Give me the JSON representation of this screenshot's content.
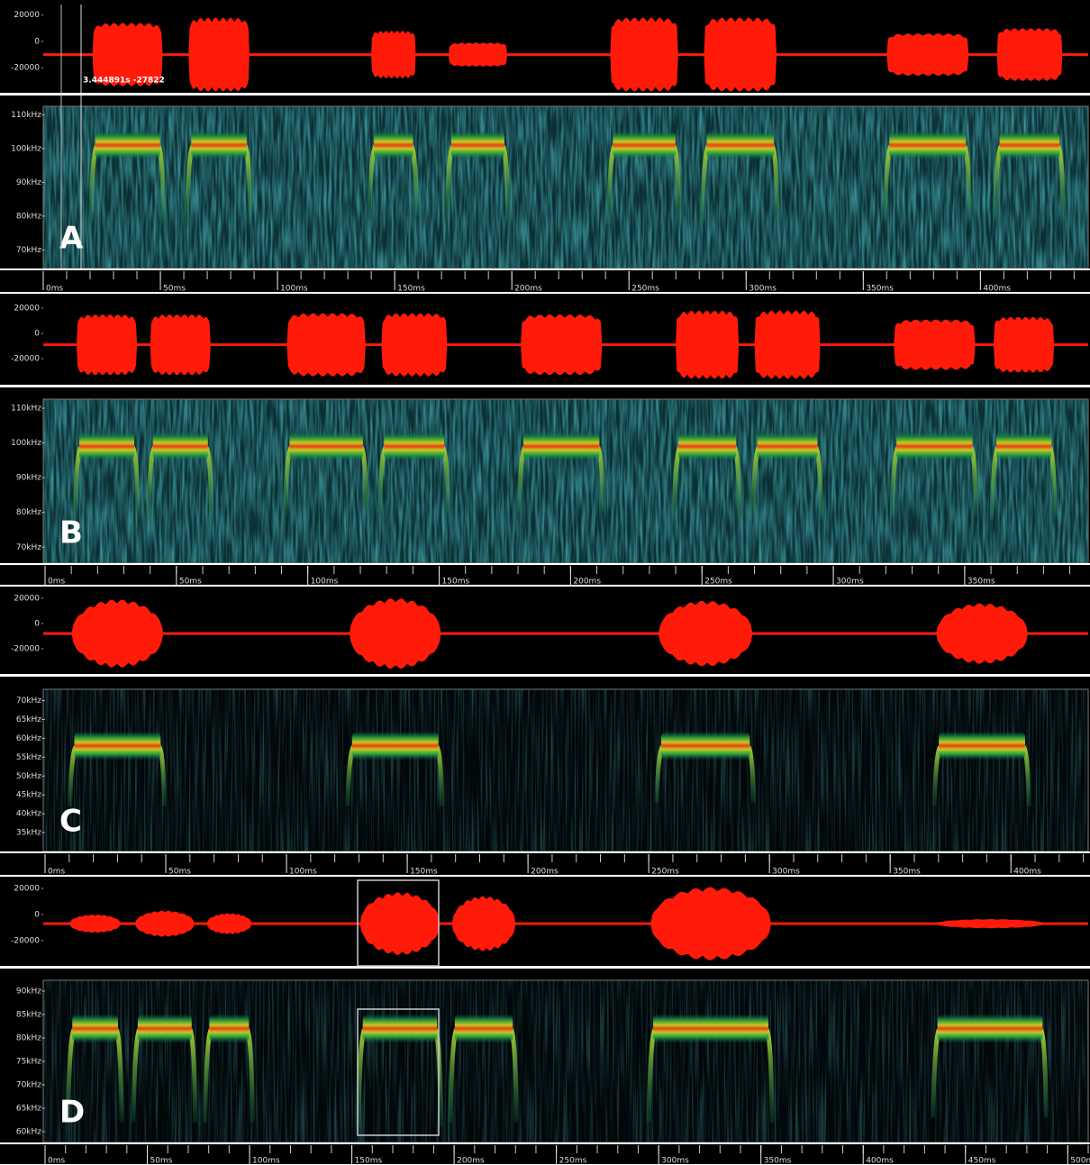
{
  "cursor_readout": "3.444891s -27822",
  "panels": [
    {
      "label": "A",
      "envelope": "flat",
      "tlim": [
        0,
        446
      ],
      "flim": [
        64.5,
        112.5
      ],
      "wave_ylim": [
        -39000,
        28000
      ],
      "dc_offset": -10000,
      "noise": "teal",
      "wave_ticks": [
        {
          "value": 20000,
          "label": "20000"
        },
        {
          "value": 0,
          "label": "0"
        },
        {
          "value": -20000,
          "label": "-20000"
        }
      ],
      "freq_ticks": [
        {
          "value": 110,
          "label": "110kHz"
        },
        {
          "value": 100,
          "label": "100kHz"
        },
        {
          "value": 90,
          "label": "90kHz"
        },
        {
          "value": 80,
          "label": "80kHz"
        },
        {
          "value": 70,
          "label": "70kHz"
        }
      ],
      "time_ticks": [
        {
          "value": 0,
          "label": "0ms"
        },
        {
          "value": 50,
          "label": "50ms"
        },
        {
          "value": 100,
          "label": "100ms"
        },
        {
          "value": 150,
          "label": "150ms"
        },
        {
          "value": 200,
          "label": "200ms"
        },
        {
          "value": 250,
          "label": "250ms"
        },
        {
          "value": 300,
          "label": "300ms"
        },
        {
          "value": 350,
          "label": "350ms"
        },
        {
          "value": 400,
          "label": "400ms"
        }
      ],
      "calls": [
        {
          "start": 21,
          "end": 51,
          "peak": 101,
          "low": 78,
          "amplitude": 24000
        },
        {
          "start": 62,
          "end": 88,
          "peak": 101,
          "low": 78,
          "amplitude": 28000
        },
        {
          "start": 140,
          "end": 159,
          "peak": 101,
          "low": 80,
          "amplitude": 18000
        },
        {
          "start": 173,
          "end": 198,
          "peak": 101,
          "low": 79,
          "amplitude": 9000
        },
        {
          "start": 242,
          "end": 271,
          "peak": 101,
          "low": 78,
          "amplitude": 28000
        },
        {
          "start": 282,
          "end": 313,
          "peak": 101,
          "low": 78,
          "amplitude": 28000
        },
        {
          "start": 360,
          "end": 395,
          "peak": 101,
          "low": 79,
          "amplitude": 16000
        },
        {
          "start": 407,
          "end": 435,
          "peak": 101,
          "low": 79,
          "amplitude": 20000
        }
      ]
    },
    {
      "label": "B",
      "envelope": "flat",
      "tlim": [
        0,
        397
      ],
      "flim": [
        65.4,
        112.6
      ],
      "wave_ylim": [
        -40700,
        28600
      ],
      "dc_offset": -9000,
      "noise": "teal",
      "wave_ticks": [
        {
          "value": 20000,
          "label": "20000"
        },
        {
          "value": 0,
          "label": "0"
        },
        {
          "value": -20000,
          "label": "-20000"
        }
      ],
      "freq_ticks": [
        {
          "value": 110,
          "label": "110kHz"
        },
        {
          "value": 100,
          "label": "100kHz"
        },
        {
          "value": 90,
          "label": "90kHz"
        },
        {
          "value": 80,
          "label": "80kHz"
        },
        {
          "value": 70,
          "label": "70kHz"
        }
      ],
      "time_ticks": [
        {
          "value": 0,
          "label": "0ms"
        },
        {
          "value": 50,
          "label": "50ms"
        },
        {
          "value": 100,
          "label": "100ms"
        },
        {
          "value": 150,
          "label": "150ms"
        },
        {
          "value": 200,
          "label": "200ms"
        },
        {
          "value": 250,
          "label": "250ms"
        },
        {
          "value": 300,
          "label": "300ms"
        },
        {
          "value": 350,
          "label": "350ms"
        }
      ],
      "calls": [
        {
          "start": 12,
          "end": 35,
          "peak": 99,
          "low": 78,
          "amplitude": 24000
        },
        {
          "start": 40,
          "end": 63,
          "peak": 99,
          "low": 78,
          "amplitude": 24000
        },
        {
          "start": 92,
          "end": 122,
          "peak": 99,
          "low": 79,
          "amplitude": 25000
        },
        {
          "start": 128,
          "end": 153,
          "peak": 99,
          "low": 80,
          "amplitude": 25000
        },
        {
          "start": 181,
          "end": 212,
          "peak": 99,
          "low": 80,
          "amplitude": 24000
        },
        {
          "start": 240,
          "end": 264,
          "peak": 99,
          "low": 78,
          "amplitude": 27000
        },
        {
          "start": 270,
          "end": 295,
          "peak": 99,
          "low": 78,
          "amplitude": 27000
        },
        {
          "start": 323,
          "end": 354,
          "peak": 99,
          "low": 79,
          "amplitude": 20000
        },
        {
          "start": 361,
          "end": 384,
          "peak": 99,
          "low": 78,
          "amplitude": 22000
        }
      ]
    },
    {
      "label": "C",
      "envelope": "round",
      "tlim": [
        0,
        432
      ],
      "flim": [
        30,
        73
      ],
      "wave_ylim": [
        -40000,
        26400
      ],
      "dc_offset": -8000,
      "noise": "dark",
      "wave_ticks": [
        {
          "value": 20000,
          "label": "20000"
        },
        {
          "value": 0,
          "label": "0"
        },
        {
          "value": -20000,
          "label": "-20000"
        }
      ],
      "freq_ticks": [
        {
          "value": 70,
          "label": "70kHz"
        },
        {
          "value": 65,
          "label": "65kHz"
        },
        {
          "value": 60,
          "label": "60kHz"
        },
        {
          "value": 55,
          "label": "55kHz"
        },
        {
          "value": 50,
          "label": "50kHz"
        },
        {
          "value": 45,
          "label": "45kHz"
        },
        {
          "value": 40,
          "label": "40kHz"
        },
        {
          "value": 35,
          "label": "35kHz"
        }
      ],
      "time_ticks": [
        {
          "value": 0,
          "label": "0ms"
        },
        {
          "value": 50,
          "label": "50ms"
        },
        {
          "value": 100,
          "label": "100ms"
        },
        {
          "value": 150,
          "label": "150ms"
        },
        {
          "value": 200,
          "label": "200ms"
        },
        {
          "value": 250,
          "label": "250ms"
        },
        {
          "value": 300,
          "label": "300ms"
        },
        {
          "value": 350,
          "label": "350ms"
        },
        {
          "value": 400,
          "label": "400ms"
        }
      ],
      "calls": [
        {
          "start": 11,
          "end": 49,
          "peak": 58,
          "low": 42,
          "amplitude": 27000
        },
        {
          "start": 126,
          "end": 164,
          "peak": 58,
          "low": 42,
          "amplitude": 28000
        },
        {
          "start": 254,
          "end": 293,
          "peak": 58,
          "low": 43,
          "amplitude": 26000
        },
        {
          "start": 369,
          "end": 407,
          "peak": 58,
          "low": 42,
          "amplitude": 24000
        }
      ]
    },
    {
      "label": "D",
      "envelope": "round",
      "tlim": [
        0,
        510
      ],
      "flim": [
        57.7,
        92.3
      ],
      "wave_ylim": [
        -39300,
        26200
      ],
      "dc_offset": -7000,
      "noise": "dark",
      "wave_ticks": [
        {
          "value": 20000,
          "label": "20000"
        },
        {
          "value": 0,
          "label": "0"
        },
        {
          "value": -20000,
          "label": "-20000"
        }
      ],
      "freq_ticks": [
        {
          "value": 90,
          "label": "90kHz"
        },
        {
          "value": 85,
          "label": "85kHz"
        },
        {
          "value": 80,
          "label": "80kHz"
        },
        {
          "value": 75,
          "label": "75kHz"
        },
        {
          "value": 70,
          "label": "70kHz"
        },
        {
          "value": 65,
          "label": "65kHz"
        },
        {
          "value": 60,
          "label": "60kHz"
        }
      ],
      "time_ticks": [
        {
          "value": 0,
          "label": "0ms"
        },
        {
          "value": 50,
          "label": "50ms"
        },
        {
          "value": 100,
          "label": "100ms"
        },
        {
          "value": 150,
          "label": "150ms"
        },
        {
          "value": 200,
          "label": "200ms"
        },
        {
          "value": 250,
          "label": "250ms"
        },
        {
          "value": 300,
          "label": "300ms"
        },
        {
          "value": 350,
          "label": "350ms"
        },
        {
          "value": 400,
          "label": "400ms"
        },
        {
          "value": 450,
          "label": "450ms"
        },
        {
          "value": 500,
          "label": "500ms"
        }
      ],
      "calls": [
        {
          "start": 12,
          "end": 37,
          "peak": 82,
          "low": 62,
          "amplitude": 7000
        },
        {
          "start": 44,
          "end": 73,
          "peak": 82,
          "low": 62,
          "amplitude": 10000
        },
        {
          "start": 79,
          "end": 101,
          "peak": 82,
          "low": 62,
          "amplitude": 8000
        },
        {
          "start": 154,
          "end": 193,
          "peak": 82,
          "low": 61,
          "amplitude": 24000
        },
        {
          "start": 199,
          "end": 230,
          "peak": 82,
          "low": 62,
          "amplitude": 21000
        },
        {
          "start": 296,
          "end": 355,
          "peak": 82,
          "low": 62,
          "amplitude": 28000
        },
        {
          "start": 435,
          "end": 489,
          "peak": 82,
          "low": 63,
          "amplitude": 3500
        }
      ]
    }
  ]
}
